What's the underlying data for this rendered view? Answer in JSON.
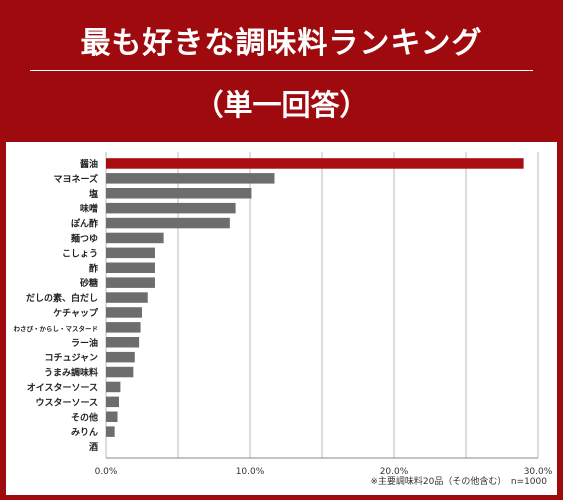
{
  "header": {
    "title": "最も好きな調味料ランキング",
    "subtitle": "（単一回答）"
  },
  "note": "※主要調味料20品（その他含む）　n=1000",
  "colors": {
    "background": "#9e0a0e",
    "highlight_bar": "#a80d12",
    "bar": "#6d6d6d",
    "grid": "#bbbbbb"
  },
  "chart_data": {
    "type": "bar",
    "orientation": "horizontal",
    "categories": [
      "醤油",
      "マヨネーズ",
      "塩",
      "味噌",
      "ぽん酢",
      "麺つゆ",
      "こしょう",
      "酢",
      "砂糖",
      "だしの素、白だし",
      "ケチャップ",
      "わさび・からし・マスタード",
      "ラー油",
      "コチュジャン",
      "うまみ調味料",
      "オイスターソース",
      "ウスターソース",
      "その他",
      "みりん",
      "酒"
    ],
    "values": [
      29.0,
      11.7,
      10.1,
      9.0,
      8.6,
      4.0,
      3.4,
      3.4,
      3.4,
      2.9,
      2.5,
      2.4,
      2.3,
      2.0,
      1.9,
      1.0,
      0.9,
      0.8,
      0.6,
      0.0
    ],
    "xlim": [
      0,
      30
    ],
    "xticks": [
      "0.0%",
      "10.0%",
      "20.0%",
      "30.0%"
    ],
    "grid": true,
    "highlight_index": 0
  }
}
